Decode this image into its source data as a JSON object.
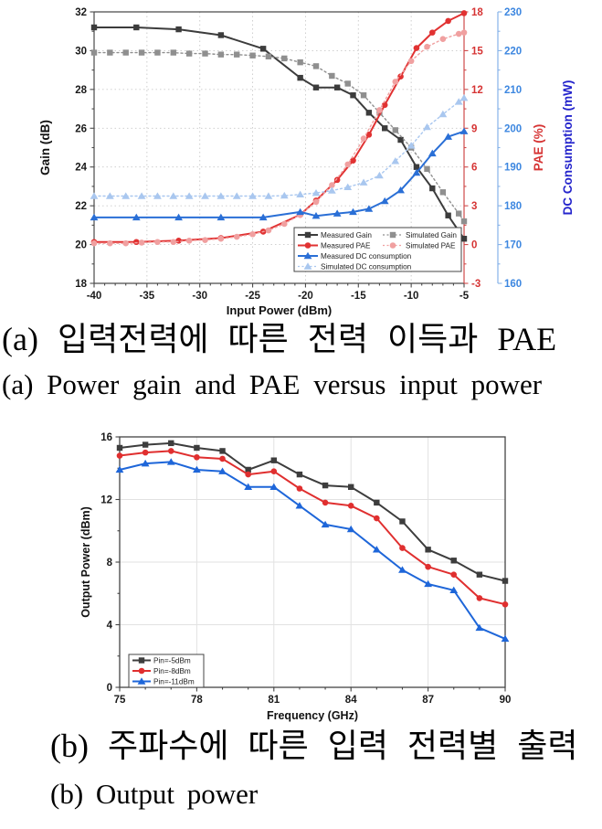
{
  "captions": {
    "a_korean": "(a) 입력전력에 따른 전력 이득과 PAE",
    "a_english": "(a) Power gain and PAE versus input power",
    "b_korean": "(b) 주파수에 따른 입력 전력별 출력",
    "b_english": "(b) Output power"
  },
  "colors": {
    "measured_gain": "#3c3c3c",
    "simulated_gain": "#8f8f8f",
    "measured_pae": "#e13232",
    "simulated_pae": "#f0a0a0",
    "measured_dc": "#2a6fd6",
    "simulated_dc": "#a9c7ef",
    "pae_axis": "#cf4a4a",
    "pae_label": "#d63434",
    "dc_axis": "#85b2e8",
    "dc_tick_label": "#3d87e0",
    "dc_title": "#2424cc",
    "pin5": "#3d3d3d",
    "pin8": "#e02f2f",
    "pin11": "#1e66d9"
  },
  "chart_data": [
    {
      "type": "line",
      "xlabel": "Input Power (dBm)",
      "xlim": [
        -40,
        -5
      ],
      "x_ticks": [
        -40,
        -35,
        -30,
        -25,
        -20,
        -15,
        -10,
        -5
      ],
      "grid": true,
      "legend_position": "bottom-right-inside",
      "axes": {
        "left": {
          "label": "Gain (dB)",
          "range": [
            18,
            32
          ],
          "ticks": [
            18,
            20,
            22,
            24,
            26,
            28,
            30,
            32
          ]
        },
        "right1": {
          "label": "PAE (%)",
          "range": [
            -3,
            18
          ],
          "ticks": [
            -3,
            0,
            3,
            6,
            9,
            12,
            15,
            18
          ]
        },
        "right2": {
          "label": "DC Consumption (mW)",
          "range": [
            160,
            230
          ],
          "ticks": [
            160,
            170,
            180,
            190,
            200,
            210,
            220,
            230
          ]
        }
      },
      "series": [
        {
          "name": "Measured Gain",
          "axis": "left",
          "style": "solid",
          "marker": "square",
          "color": "#3c3c3c",
          "x": [
            -40,
            -36,
            -32,
            -28,
            -24,
            -20.5,
            -19,
            -17,
            -15.5,
            -14,
            -12.5,
            -11,
            -9.5,
            -8,
            -6.5,
            -5
          ],
          "y": [
            31.2,
            31.2,
            31.1,
            30.8,
            30.1,
            28.6,
            28.1,
            28.1,
            27.7,
            26.8,
            26.0,
            25.4,
            24.0,
            22.9,
            21.5,
            20.3
          ]
        },
        {
          "name": "Simulated Gain",
          "axis": "left",
          "style": "dotted",
          "marker": "square",
          "color": "#8f8f8f",
          "x": [
            -40,
            -38.5,
            -37,
            -35.5,
            -34,
            -32.5,
            -31,
            -29.5,
            -28,
            -26.5,
            -25,
            -23.5,
            -22,
            -20.5,
            -19,
            -17.5,
            -16,
            -14.5,
            -13,
            -11.5,
            -10,
            -8.5,
            -7,
            -5.5,
            -5
          ],
          "y": [
            29.9,
            29.9,
            29.9,
            29.9,
            29.9,
            29.9,
            29.85,
            29.85,
            29.8,
            29.8,
            29.75,
            29.7,
            29.6,
            29.4,
            29.2,
            28.7,
            28.3,
            27.7,
            26.8,
            25.9,
            25.0,
            23.9,
            22.7,
            21.6,
            21.2
          ]
        },
        {
          "name": "Measured PAE",
          "axis": "right1",
          "style": "solid",
          "marker": "circle",
          "color": "#e13232",
          "x": [
            -40,
            -36,
            -32,
            -28,
            -24,
            -20.5,
            -19,
            -17,
            -15.5,
            -14,
            -12.5,
            -11,
            -9.5,
            -8,
            -6.5,
            -5
          ],
          "y": [
            0.2,
            0.2,
            0.3,
            0.5,
            1.0,
            2.3,
            3.4,
            5.0,
            6.5,
            8.5,
            10.8,
            13.0,
            15.2,
            16.4,
            17.3,
            17.9
          ]
        },
        {
          "name": "Simulated PAE",
          "axis": "right1",
          "style": "dotted",
          "marker": "circle",
          "color": "#f0a0a0",
          "x": [
            -40,
            -38.5,
            -37,
            -35.5,
            -34,
            -32.5,
            -31,
            -29.5,
            -28,
            -26.5,
            -25,
            -23.5,
            -22,
            -20.5,
            -19,
            -17.5,
            -16,
            -14.5,
            -13,
            -11.5,
            -10,
            -8.5,
            -7,
            -5.5,
            -5
          ],
          "y": [
            0.1,
            0.1,
            0.1,
            0.15,
            0.2,
            0.2,
            0.3,
            0.35,
            0.45,
            0.6,
            0.8,
            1.1,
            1.6,
            2.3,
            3.3,
            4.6,
            6.2,
            8.2,
            10.4,
            12.6,
            14.2,
            15.3,
            15.9,
            16.3,
            16.4
          ]
        },
        {
          "name": "Measured DC consumption",
          "axis": "right2",
          "style": "solid",
          "marker": "triangle",
          "color": "#2a6fd6",
          "x": [
            -40,
            -36,
            -32,
            -28,
            -24,
            -20.5,
            -19,
            -17,
            -15.5,
            -14,
            -12.5,
            -11,
            -9.5,
            -8,
            -6.5,
            -5
          ],
          "y": [
            177,
            177,
            177,
            177,
            177,
            178.4,
            177.4,
            178.0,
            178.4,
            179.2,
            181.2,
            184.0,
            188.5,
            193.5,
            197.8,
            199.2
          ]
        },
        {
          "name": "Simulated DC consumption",
          "axis": "right2",
          "style": "dotted",
          "marker": "triangle",
          "color": "#a9c7ef",
          "x": [
            -40,
            -38.5,
            -37,
            -35.5,
            -34,
            -32.5,
            -31,
            -29.5,
            -28,
            -26.5,
            -25,
            -23.5,
            -22,
            -20.5,
            -19,
            -17.5,
            -16,
            -14.5,
            -13,
            -11.5,
            -10,
            -8.5,
            -7,
            -5.5,
            -5
          ],
          "y": [
            182.5,
            182.5,
            182.5,
            182.5,
            182.5,
            182.5,
            182.5,
            182.5,
            182.5,
            182.5,
            182.5,
            182.5,
            182.6,
            182.9,
            183.3,
            183.9,
            184.8,
            186.0,
            187.8,
            191.5,
            195.5,
            200.3,
            203.6,
            206.8,
            207.8
          ]
        }
      ]
    },
    {
      "type": "line",
      "xlabel": "Frequency (GHz)",
      "ylabel": "Output Power (dBm)",
      "xlim": [
        75,
        90
      ],
      "ylim": [
        0,
        16
      ],
      "x_ticks": [
        75,
        78,
        81,
        84,
        87,
        90
      ],
      "y_ticks": [
        0,
        4,
        8,
        12,
        16
      ],
      "grid": true,
      "legend_position": "bottom-left-inside",
      "x": [
        75,
        76,
        77,
        78,
        79,
        80,
        81,
        82,
        83,
        84,
        85,
        86,
        87,
        88,
        89,
        90
      ],
      "series": [
        {
          "name": "Pin=-5dBm",
          "marker": "square",
          "style": "solid",
          "color": "#3d3d3d",
          "values": [
            15.3,
            15.5,
            15.6,
            15.3,
            15.1,
            13.9,
            14.5,
            13.6,
            12.9,
            12.8,
            11.8,
            10.6,
            8.8,
            8.1,
            7.2,
            6.8
          ]
        },
        {
          "name": "Pin=-8dBm",
          "marker": "circle",
          "style": "solid",
          "color": "#e02f2f",
          "values": [
            14.8,
            15.0,
            15.1,
            14.7,
            14.6,
            13.6,
            13.8,
            12.7,
            11.8,
            11.6,
            10.8,
            8.9,
            7.7,
            7.2,
            5.7,
            5.3
          ]
        },
        {
          "name": "Pin=-11dBm",
          "marker": "triangle",
          "style": "solid",
          "color": "#1e66d9",
          "values": [
            13.9,
            14.3,
            14.4,
            13.9,
            13.8,
            12.8,
            12.8,
            11.6,
            10.4,
            10.1,
            8.8,
            7.5,
            6.6,
            6.2,
            3.8,
            3.1
          ]
        }
      ]
    }
  ]
}
